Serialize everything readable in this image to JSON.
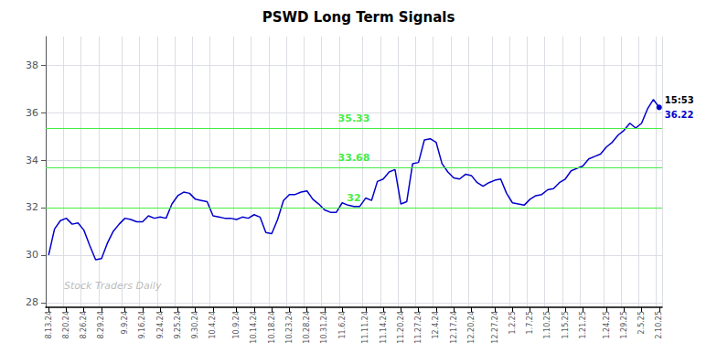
{
  "chart_data": {
    "type": "line",
    "title": "PSWD Long Term Signals",
    "color": "#0000cc",
    "grid": true,
    "ylim": [
      27.8,
      39.2
    ],
    "yticks": [
      28,
      30,
      32,
      34,
      36,
      38
    ],
    "categories": [
      "8.13.24",
      null,
      null,
      "8.20.24",
      null,
      null,
      "8.26.24",
      null,
      null,
      "8.29.24",
      null,
      null,
      null,
      "9.9.24",
      null,
      null,
      "9.16.24",
      null,
      null,
      "9.24.24",
      null,
      null,
      "9.25.24",
      null,
      null,
      "9.30.24",
      null,
      null,
      "10.4.24",
      null,
      null,
      null,
      "10.9.24",
      null,
      null,
      "10.14.24",
      null,
      null,
      "10.18.24",
      null,
      null,
      "10.23.24",
      null,
      null,
      "10.28.24",
      null,
      null,
      "10.31.24",
      null,
      null,
      "11.6.24",
      null,
      null,
      null,
      "11.11.24",
      null,
      null,
      "11.14.24",
      null,
      null,
      "11.20.24",
      null,
      null,
      "11.27.24",
      null,
      null,
      "12.4.24",
      null,
      null,
      "12.17.24",
      null,
      null,
      "12.20.24",
      null,
      null,
      null,
      "12.27.24",
      null,
      null,
      "1.2.25",
      null,
      null,
      "1.7.25",
      null,
      null,
      "1.10.25",
      null,
      null,
      "1.15.25",
      null,
      null,
      "1.21.25",
      null,
      null,
      null,
      "1.24.25",
      null,
      null,
      "1.29.25",
      null,
      null,
      "2.5.25",
      null,
      null,
      "2.10.25"
    ],
    "values": [
      30.0,
      31.1,
      31.45,
      31.55,
      31.3,
      31.35,
      31.05,
      30.4,
      29.8,
      29.85,
      30.5,
      31.0,
      31.3,
      31.55,
      31.5,
      31.4,
      31.4,
      31.65,
      31.55,
      31.6,
      31.55,
      32.15,
      32.5,
      32.65,
      32.6,
      32.35,
      32.3,
      32.25,
      31.65,
      31.6,
      31.55,
      31.55,
      31.5,
      31.6,
      31.55,
      31.7,
      31.6,
      30.95,
      30.9,
      31.5,
      32.3,
      32.55,
      32.55,
      32.65,
      32.7,
      32.35,
      32.15,
      31.9,
      31.8,
      31.8,
      32.2,
      32.1,
      32.05,
      32.05,
      32.4,
      32.3,
      33.1,
      33.2,
      33.5,
      33.6,
      32.15,
      32.25,
      33.85,
      33.9,
      34.85,
      34.9,
      34.75,
      33.85,
      33.5,
      33.25,
      33.2,
      33.4,
      33.35,
      33.05,
      32.9,
      33.05,
      33.15,
      33.2,
      32.6,
      32.2,
      32.15,
      32.1,
      32.35,
      32.5,
      32.55,
      32.75,
      32.8,
      33.05,
      33.2,
      33.55,
      33.65,
      33.75,
      34.05,
      34.15,
      34.25,
      34.55,
      34.75,
      35.05,
      35.25,
      35.55,
      35.35,
      35.55,
      36.15,
      36.55,
      36.22
    ],
    "hlines": [
      {
        "value": 32.0,
        "label": "32",
        "color": "#44ee44"
      },
      {
        "value": 33.68,
        "label": "33.68",
        "color": "#44ee44"
      },
      {
        "value": 35.33,
        "label": "35.33",
        "color": "#44ee44"
      }
    ],
    "annotations": [
      {
        "text": "15:53",
        "y": 36.22
      },
      {
        "text": "36.22",
        "y": 36.22,
        "color": "#0000cc"
      }
    ],
    "watermark": "Stock Traders Daily"
  }
}
